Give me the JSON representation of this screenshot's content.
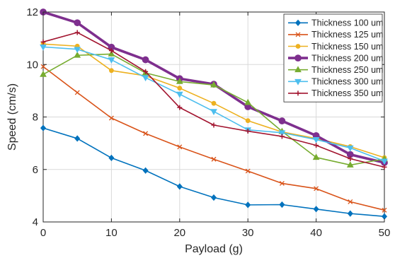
{
  "chart_data": {
    "type": "line",
    "title": "",
    "xlabel": "Payload (g)",
    "ylabel": "Speed (cm/s)",
    "xlim": [
      0,
      50
    ],
    "ylim": [
      4,
      12
    ],
    "xticks": [
      0,
      10,
      20,
      30,
      40,
      50
    ],
    "yticks": [
      4,
      6,
      8,
      10,
      12
    ],
    "grid": true,
    "legend_position": "top-right",
    "x": [
      0,
      5,
      10,
      15,
      20,
      25,
      30,
      35,
      40,
      45,
      50
    ],
    "series": [
      {
        "name": "Thickness 100 um",
        "color": "#0072BD",
        "marker": "diamond",
        "values": [
          7.58,
          7.18,
          6.44,
          5.96,
          5.35,
          4.93,
          4.65,
          4.66,
          4.49,
          4.32,
          4.21
        ]
      },
      {
        "name": "Thickness 125 um",
        "color": "#D95319",
        "marker": "x",
        "values": [
          9.92,
          8.93,
          7.96,
          7.37,
          6.86,
          6.39,
          5.94,
          5.47,
          5.27,
          4.77,
          4.45
        ]
      },
      {
        "name": "Thickness 150 um",
        "color": "#EDB120",
        "marker": "circle",
        "values": [
          10.78,
          10.7,
          9.77,
          9.57,
          9.1,
          8.52,
          7.86,
          7.43,
          7.18,
          6.87,
          6.45
        ]
      },
      {
        "name": "Thickness 200 um",
        "color": "#7E2F8E",
        "marker": "circle-bold",
        "values": [
          12.0,
          11.59,
          10.66,
          10.18,
          9.46,
          9.25,
          8.39,
          7.85,
          7.29,
          6.57,
          6.26
        ]
      },
      {
        "name": "Thickness 250 um",
        "color": "#77AC30",
        "marker": "triangle-up",
        "values": [
          9.62,
          10.35,
          10.4,
          9.68,
          9.35,
          9.22,
          8.55,
          7.45,
          6.46,
          6.17,
          6.4
        ]
      },
      {
        "name": "Thickness 300 um",
        "color": "#4DBEEE",
        "marker": "triangle-down",
        "values": [
          10.67,
          10.58,
          10.18,
          9.5,
          8.87,
          8.21,
          7.51,
          7.4,
          7.14,
          6.82,
          6.32
        ]
      },
      {
        "name": "Thickness 350 um",
        "color": "#A2142F",
        "marker": "cross",
        "values": [
          10.86,
          11.22,
          10.53,
          9.73,
          8.36,
          7.69,
          7.46,
          7.26,
          6.92,
          6.41,
          6.09
        ]
      }
    ]
  }
}
